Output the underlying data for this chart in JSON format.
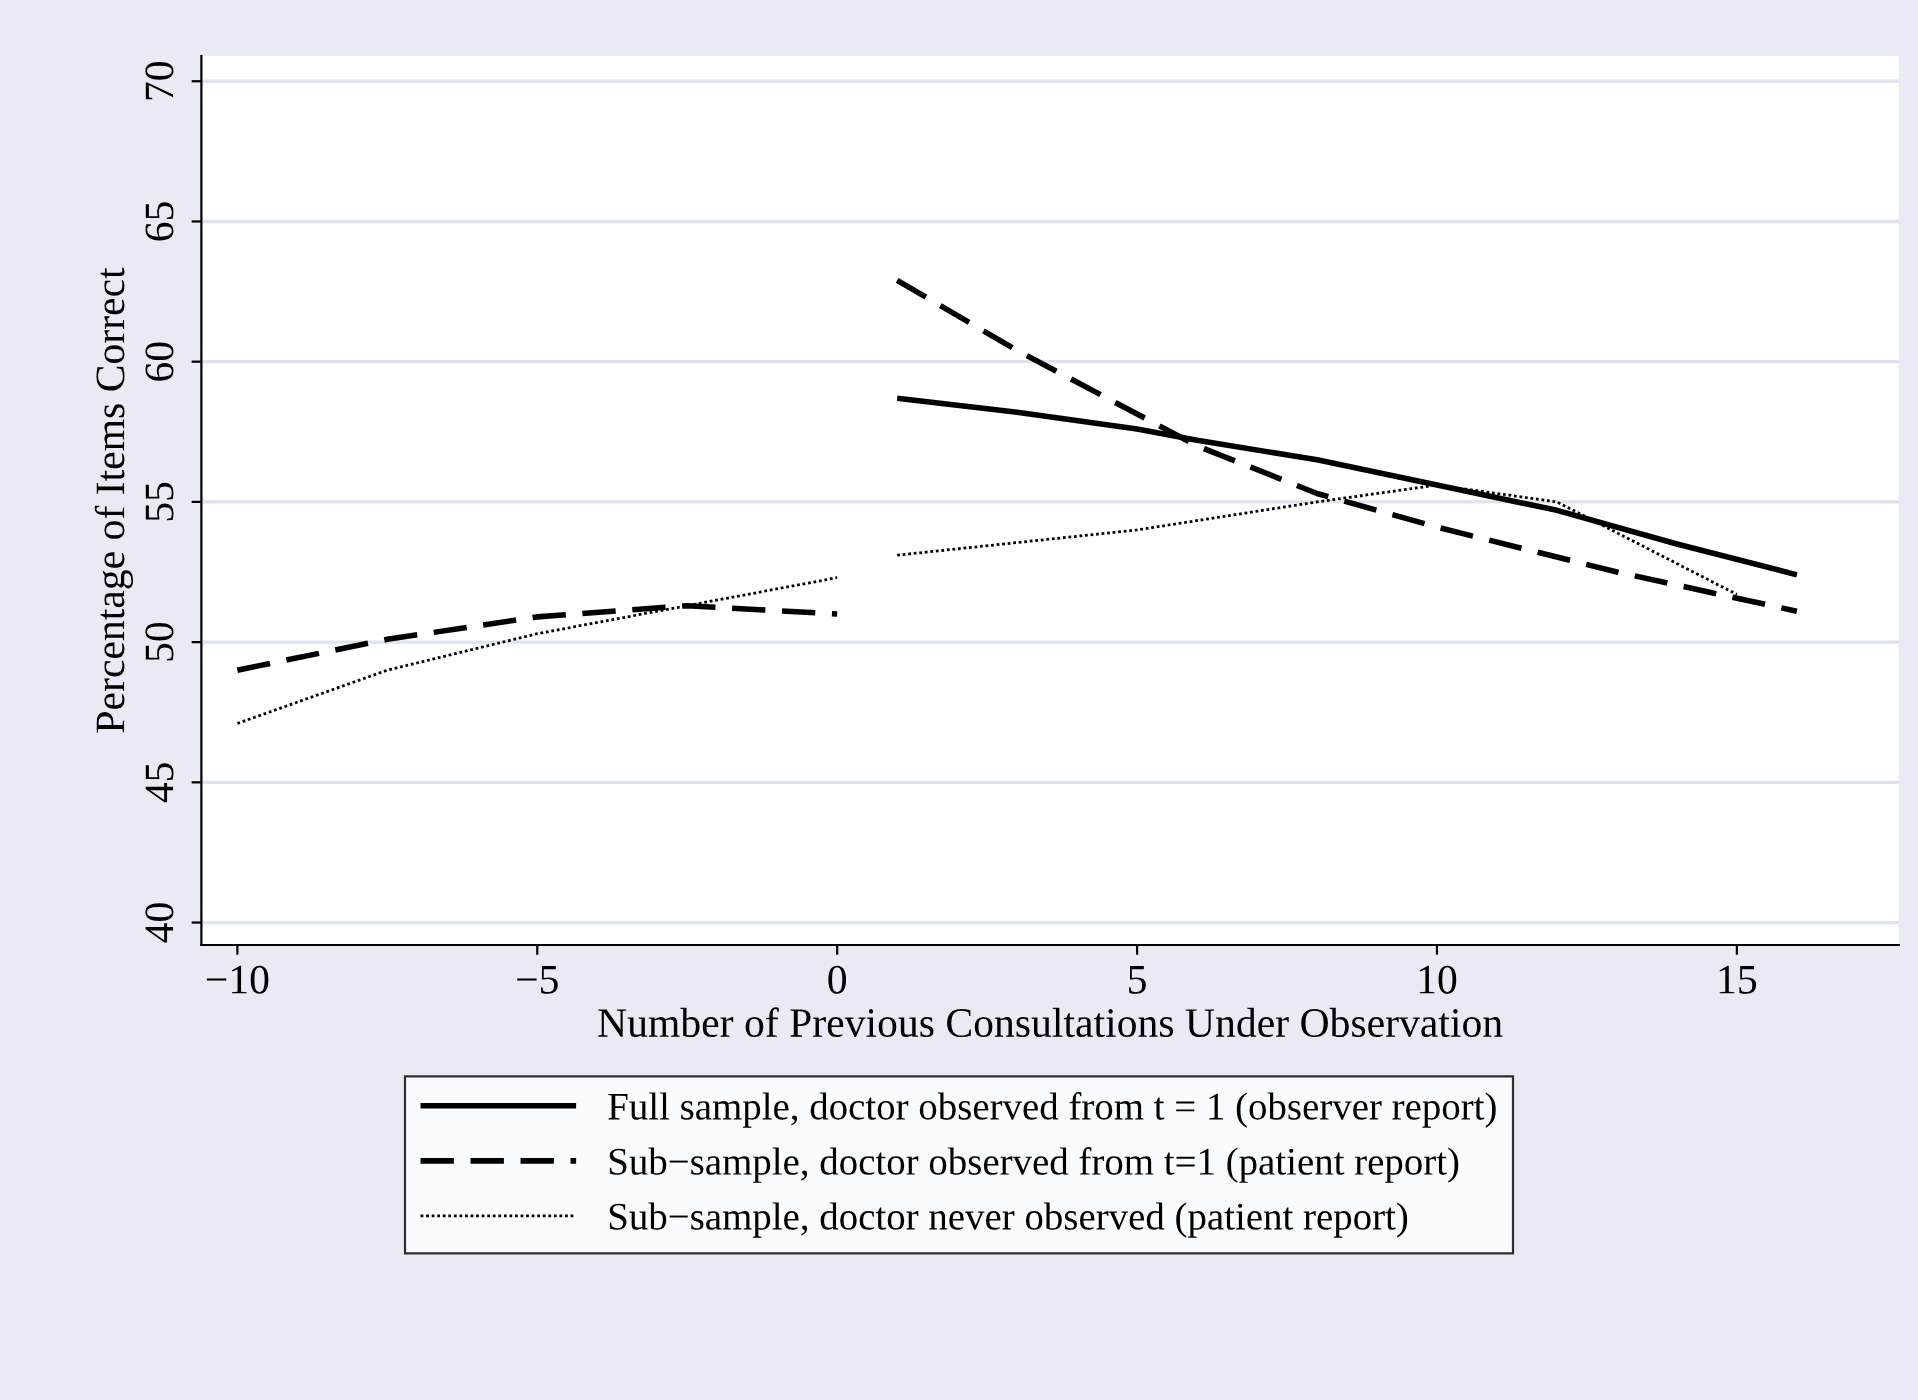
{
  "chart_data": {
    "type": "line",
    "xlabel": "Number of Previous Consultations Under Observation",
    "ylabel": "Percentage of Items Correct",
    "xlim": [
      -10.6,
      17.7
    ],
    "xticks": [
      {
        "value": -10,
        "label": "−10"
      },
      {
        "value": -5,
        "label": "−5"
      },
      0,
      5,
      10,
      15
    ],
    "ylim": [
      39.2,
      70.9
    ],
    "yticks": [
      40,
      45,
      50,
      55,
      60,
      65,
      70
    ],
    "grid": "y",
    "legend": "bottom",
    "series": [
      {
        "name": "Full sample, doctor observed from t = 1 (observer report)",
        "color": "#000000",
        "line_style": "solid",
        "x": [
          1,
          3,
          5,
          6,
          8,
          10,
          12,
          14,
          16
        ],
        "values": [
          58.7,
          58.2,
          57.6,
          57.2,
          56.5,
          55.6,
          54.7,
          53.5,
          52.4
        ]
      },
      {
        "name": "Sub−sample, doctor observed from t=1 (patient report)",
        "color": "#000000",
        "line_style": "dashed",
        "x": [
          -10,
          -7.5,
          -5,
          -2.5,
          0,
          0.5,
          1,
          3,
          6,
          8,
          10,
          13,
          16
        ],
        "values": [
          49.0,
          50.1,
          50.9,
          51.3,
          51.0,
          null,
          62.9,
          60.4,
          57.0,
          55.3,
          54.1,
          52.5,
          51.1
        ]
      },
      {
        "name": "Sub−sample, doctor never observed (patient report)",
        "color": "#000000",
        "line_style": "dotted",
        "x": [
          -10,
          -7.5,
          -5,
          -2.5,
          0,
          0.5,
          1,
          5,
          8,
          10,
          12,
          14,
          15
        ],
        "values": [
          47.1,
          49.0,
          50.3,
          51.3,
          52.3,
          null,
          53.1,
          54.0,
          55.0,
          55.6,
          55.0,
          52.8,
          51.7
        ]
      }
    ]
  }
}
